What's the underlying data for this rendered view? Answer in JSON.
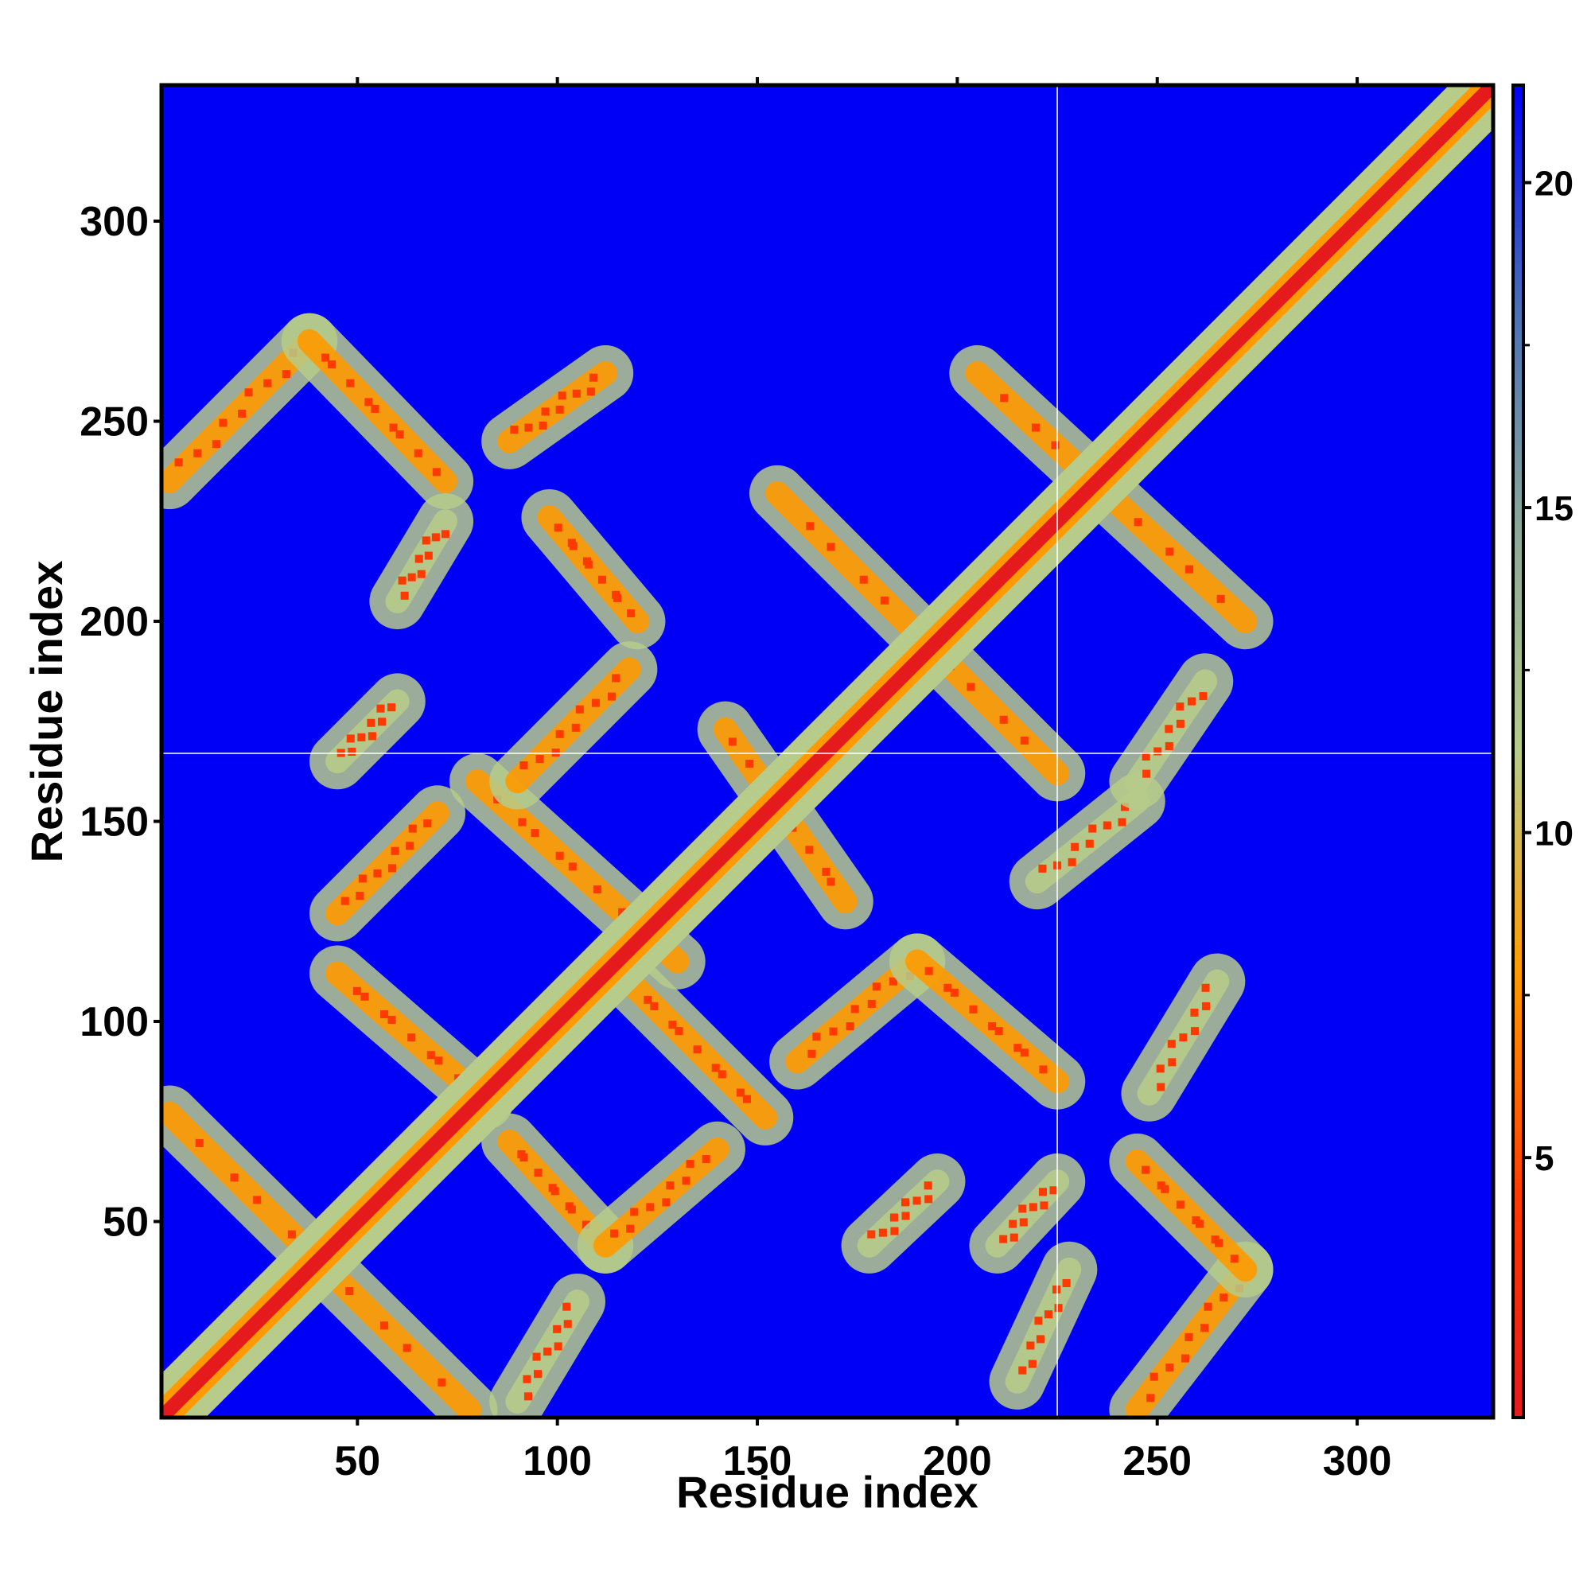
{
  "chart_data": {
    "type": "heatmap",
    "title": "",
    "xlabel": "Residue index",
    "ylabel": "Residue index",
    "xlim": [
      1,
      334
    ],
    "ylim": [
      1,
      334
    ],
    "x_ticks": [
      50,
      100,
      150,
      200,
      250,
      300
    ],
    "y_ticks": [
      50,
      100,
      150,
      200,
      250,
      300
    ],
    "x_tick_labels": [
      "50",
      "100",
      "150",
      "200",
      "250",
      "300"
    ],
    "y_tick_labels": [
      "50",
      "100",
      "150",
      "200",
      "250",
      "300"
    ],
    "grid": false,
    "background_value": 21,
    "colorbar": {
      "range": [
        1,
        21.5
      ],
      "ticks": [
        5,
        10,
        15,
        20
      ],
      "tick_labels": [
        "5",
        "10",
        "15",
        "20"
      ],
      "placement": "right",
      "colors": [
        "#e41a1c",
        "#ff3a00",
        "#ff9a00",
        "#b7cc8a",
        "#8ca89a",
        "#4a6fb4",
        "#0000f6"
      ]
    },
    "diagonal_band": {
      "x_start": 1,
      "x_end": 334,
      "value_center": 2,
      "half_width_residues": 6
    },
    "contact_segments": [
      {
        "x0": 3,
        "y0": 77,
        "x1": 78,
        "y1": 3,
        "value": 10
      },
      {
        "x0": 3,
        "y0": 235,
        "x1": 38,
        "y1": 270,
        "value": 10
      },
      {
        "x0": 38,
        "y0": 270,
        "x1": 72,
        "y1": 235,
        "value": 10
      },
      {
        "x0": 45,
        "y0": 127,
        "x1": 70,
        "y1": 152,
        "value": 10
      },
      {
        "x0": 45,
        "y0": 112,
        "x1": 82,
        "y1": 80,
        "value": 10
      },
      {
        "x0": 80,
        "y0": 160,
        "x1": 130,
        "y1": 115,
        "value": 10
      },
      {
        "x0": 90,
        "y0": 160,
        "x1": 118,
        "y1": 188,
        "value": 10
      },
      {
        "x0": 88,
        "y0": 70,
        "x1": 112,
        "y1": 44,
        "value": 10
      },
      {
        "x0": 112,
        "y0": 44,
        "x1": 140,
        "y1": 68,
        "value": 10
      },
      {
        "x0": 118,
        "y0": 110,
        "x1": 152,
        "y1": 76,
        "value": 10
      },
      {
        "x0": 98,
        "y0": 226,
        "x1": 120,
        "y1": 200,
        "value": 11
      },
      {
        "x0": 88,
        "y0": 245,
        "x1": 112,
        "y1": 262,
        "value": 11
      },
      {
        "x0": 160,
        "y0": 90,
        "x1": 190,
        "y1": 115,
        "value": 10
      },
      {
        "x0": 190,
        "y0": 115,
        "x1": 225,
        "y1": 85,
        "value": 10
      },
      {
        "x0": 155,
        "y0": 232,
        "x1": 225,
        "y1": 162,
        "value": 10
      },
      {
        "x0": 205,
        "y0": 262,
        "x1": 272,
        "y1": 200,
        "value": 10
      },
      {
        "x0": 142,
        "y0": 173,
        "x1": 172,
        "y1": 130,
        "value": 10
      },
      {
        "x0": 245,
        "y0": 3,
        "x1": 272,
        "y1": 38,
        "value": 10
      },
      {
        "x0": 245,
        "y0": 65,
        "x1": 272,
        "y1": 38,
        "value": 10
      },
      {
        "x0": 248,
        "y0": 82,
        "x1": 265,
        "y1": 110,
        "value": 12
      },
      {
        "x0": 210,
        "y0": 44,
        "x1": 225,
        "y1": 60,
        "value": 12
      },
      {
        "x0": 178,
        "y0": 44,
        "x1": 195,
        "y1": 60,
        "value": 12
      },
      {
        "x0": 60,
        "y0": 205,
        "x1": 72,
        "y1": 225,
        "value": 12
      },
      {
        "x0": 45,
        "y0": 165,
        "x1": 60,
        "y1": 180,
        "value": 12
      },
      {
        "x0": 90,
        "y0": 5,
        "x1": 105,
        "y1": 30,
        "value": 12
      },
      {
        "x0": 215,
        "y0": 10,
        "x1": 228,
        "y1": 38,
        "value": 12
      },
      {
        "x0": 220,
        "y0": 135,
        "x1": 245,
        "y1": 155,
        "value": 12
      },
      {
        "x0": 245,
        "y0": 160,
        "x1": 262,
        "y1": 185,
        "value": 12
      }
    ],
    "separator_lines": [
      {
        "orientation": "vertical",
        "x": 225
      },
      {
        "orientation": "horizontal",
        "y": 167
      }
    ]
  }
}
